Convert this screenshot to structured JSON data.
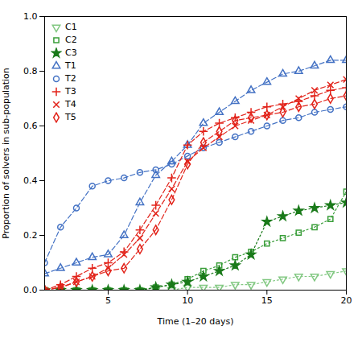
{
  "chart_data": {
    "type": "line",
    "xlabel": "Time (1–20 days)",
    "ylabel": "Proportion of solvers in sub-population",
    "x": [
      1,
      2,
      3,
      4,
      5,
      6,
      7,
      8,
      9,
      10,
      11,
      12,
      13,
      14,
      15,
      16,
      17,
      18,
      19,
      20
    ],
    "xlim": [
      1,
      20
    ],
    "ylim": [
      0,
      1.0
    ],
    "xticks": [
      5,
      10,
      15,
      20
    ],
    "yticks": [
      {
        "value": 0,
        "label": "0.0"
      },
      0.2,
      0.4,
      0.6,
      0.8,
      {
        "value": 1,
        "label": "1.0"
      }
    ],
    "grid": false,
    "legend": "upper left",
    "series": [
      {
        "name": "C1",
        "color": "#82c882",
        "marker": "triangle-down-open",
        "line_style": "dotted",
        "values": [
          0.0,
          0.0,
          0.0,
          0.0,
          0.0,
          0.0,
          0.0,
          0.0,
          0.0,
          0.01,
          0.01,
          0.01,
          0.02,
          0.02,
          0.03,
          0.04,
          0.05,
          0.05,
          0.06,
          0.07
        ]
      },
      {
        "name": "C2",
        "color": "#3a9e3a",
        "marker": "square-open",
        "line_style": "dotted",
        "values": [
          0.0,
          0.0,
          0.0,
          0.0,
          0.0,
          0.0,
          0.0,
          0.01,
          0.02,
          0.04,
          0.07,
          0.09,
          0.12,
          0.14,
          0.17,
          0.19,
          0.21,
          0.23,
          0.26,
          0.36
        ]
      },
      {
        "name": "C3",
        "color": "#1a7a1a",
        "marker": "star",
        "line_style": "dotted",
        "values": [
          0.0,
          0.0,
          0.0,
          0.0,
          0.0,
          0.0,
          0.0,
          0.01,
          0.02,
          0.03,
          0.05,
          0.07,
          0.09,
          0.13,
          0.25,
          0.27,
          0.29,
          0.3,
          0.31,
          0.32
        ]
      },
      {
        "name": "T1",
        "color": "#4472c4",
        "marker": "triangle-open",
        "line_style": "dashed",
        "values": [
          0.06,
          0.08,
          0.1,
          0.12,
          0.13,
          0.2,
          0.32,
          0.42,
          0.47,
          0.53,
          0.61,
          0.65,
          0.69,
          0.73,
          0.76,
          0.79,
          0.8,
          0.82,
          0.84,
          0.84
        ]
      },
      {
        "name": "T2",
        "color": "#4472c4",
        "marker": "circle-open",
        "line_style": "dashed",
        "values": [
          0.1,
          0.23,
          0.3,
          0.38,
          0.4,
          0.41,
          0.43,
          0.44,
          0.46,
          0.49,
          0.52,
          0.54,
          0.56,
          0.58,
          0.6,
          0.62,
          0.63,
          0.65,
          0.66,
          0.67
        ]
      },
      {
        "name": "T3",
        "color": "#e2231a",
        "marker": "plus",
        "line_style": "dashed",
        "values": [
          0.0,
          0.02,
          0.05,
          0.08,
          0.1,
          0.14,
          0.22,
          0.31,
          0.41,
          0.53,
          0.58,
          0.61,
          0.63,
          0.65,
          0.67,
          0.68,
          0.69,
          0.71,
          0.73,
          0.74
        ]
      },
      {
        "name": "T4",
        "color": "#e2231a",
        "marker": "x",
        "line_style": "dashed",
        "values": [
          0.0,
          0.01,
          0.03,
          0.05,
          0.08,
          0.13,
          0.19,
          0.28,
          0.37,
          0.47,
          0.52,
          0.56,
          0.6,
          0.62,
          0.64,
          0.67,
          0.7,
          0.73,
          0.75,
          0.77
        ]
      },
      {
        "name": "T5",
        "color": "#e2231a",
        "marker": "diamond-open",
        "line_style": "dashed",
        "values": [
          0.0,
          0.01,
          0.03,
          0.05,
          0.07,
          0.08,
          0.15,
          0.22,
          0.33,
          0.46,
          0.54,
          0.58,
          0.62,
          0.63,
          0.64,
          0.65,
          0.67,
          0.68,
          0.7,
          0.71
        ]
      }
    ]
  }
}
